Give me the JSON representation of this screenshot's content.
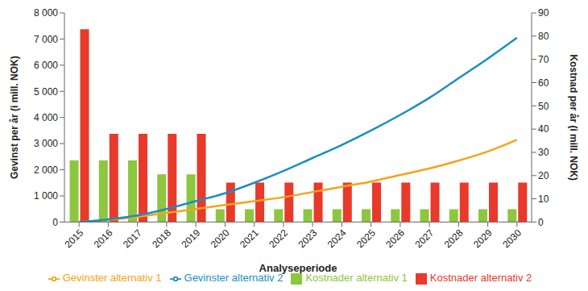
{
  "chart_data": {
    "type": "bar",
    "x_label": "Analyseperiode",
    "y_label": "Gevinst per år (i mill. NOK)",
    "y2_label": "Kostnad per år (i mill. NOK)",
    "categories": [
      "2015",
      "2016",
      "2017",
      "2018",
      "2019",
      "2020",
      "2021",
      "2022",
      "2023",
      "2024",
      "2025",
      "2026",
      "2027",
      "2028",
      "2029",
      "2030"
    ],
    "series": [
      {
        "name": "Kostnader alternativ 1",
        "type": "bar",
        "axis": "y2",
        "color": "#8dc63f",
        "values": [
          26.5,
          26.5,
          26.5,
          20.5,
          20.5,
          5.5,
          5.5,
          5.5,
          5.5,
          5.5,
          5.5,
          5.5,
          5.5,
          5.5,
          5.5,
          5.5
        ]
      },
      {
        "name": "Kostnader alternativ 2",
        "type": "bar",
        "axis": "y2",
        "color": "#e8392b",
        "values": [
          83,
          38,
          38,
          38,
          38,
          17,
          17,
          17,
          17,
          17,
          17,
          17,
          17,
          17,
          17,
          17
        ]
      },
      {
        "name": "Gevinster alternativ 1",
        "type": "line",
        "color": "#f5a31a",
        "values": [
          0,
          80,
          200,
          350,
          500,
          650,
          800,
          950,
          1150,
          1350,
          1550,
          1800,
          2050,
          2350,
          2700,
          3150
        ]
      },
      {
        "name": "Gevinster alternativ 2",
        "type": "line",
        "color": "#1b8ec2",
        "values": [
          0,
          100,
          250,
          500,
          800,
          1100,
          1500,
          1950,
          2450,
          2950,
          3500,
          4100,
          4750,
          5500,
          6250,
          7050
        ]
      }
    ],
    "ylim": [
      0,
      8000
    ],
    "yticks": [
      0,
      {
        "value": 1000,
        "label": "1 000"
      },
      {
        "value": 2000,
        "label": "2 000"
      },
      {
        "value": 3000,
        "label": "3 000"
      },
      {
        "value": 4000,
        "label": "4 000"
      },
      {
        "value": 5000,
        "label": "5 000"
      },
      {
        "value": 6000,
        "label": "6 000"
      },
      {
        "value": 7000,
        "label": "7 000"
      },
      {
        "value": 8000,
        "label": "8 000"
      }
    ],
    "y2lim": [
      0,
      90
    ],
    "y2ticks": [
      0,
      10,
      20,
      30,
      40,
      50,
      60,
      70,
      80,
      90
    ],
    "grid": false,
    "legend": "bottom"
  }
}
